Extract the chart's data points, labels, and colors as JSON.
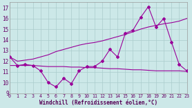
{
  "series1": [
    12.4,
    11.6,
    11.7,
    11.6,
    11.1,
    10.0,
    9.6,
    10.4,
    9.9,
    11.1,
    11.5,
    11.5,
    12.0,
    13.1,
    12.4,
    14.6,
    14.9,
    16.1,
    17.1,
    15.2,
    16.0,
    13.8,
    11.7,
    11.1
  ],
  "series2": [
    11.6,
    11.6,
    11.6,
    11.6,
    11.55,
    11.5,
    11.5,
    11.5,
    11.45,
    11.45,
    11.4,
    11.4,
    11.35,
    11.3,
    11.3,
    11.25,
    11.2,
    11.2,
    11.15,
    11.1,
    11.1,
    11.1,
    11.1,
    11.05
  ],
  "series3": [
    12.4,
    12.0,
    12.1,
    12.2,
    12.4,
    12.6,
    12.9,
    13.1,
    13.3,
    13.5,
    13.65,
    13.75,
    13.9,
    14.1,
    14.3,
    14.5,
    14.75,
    15.0,
    15.2,
    15.35,
    15.5,
    15.6,
    15.75,
    16.0
  ],
  "x": [
    0,
    1,
    2,
    3,
    4,
    5,
    6,
    7,
    8,
    9,
    10,
    11,
    12,
    13,
    14,
    15,
    16,
    17,
    18,
    19,
    20,
    21,
    22,
    23
  ],
  "xlim": [
    0,
    23
  ],
  "ylim": [
    9,
    17.5
  ],
  "yticks": [
    9,
    10,
    11,
    12,
    13,
    14,
    15,
    16,
    17
  ],
  "xtick_labels": [
    "0",
    "1",
    "2",
    "3",
    "4",
    "5",
    "6",
    "7",
    "8",
    "9",
    "10",
    "11",
    "12",
    "13",
    "14",
    "15",
    "16",
    "17",
    "18",
    "19",
    "20",
    "21",
    "22",
    "23"
  ],
  "xlabel": "Windchill (Refroidissement éolien,°C)",
  "line_color": "#990099",
  "bg_color": "#cce8e8",
  "grid_color": "#aacccc"
}
